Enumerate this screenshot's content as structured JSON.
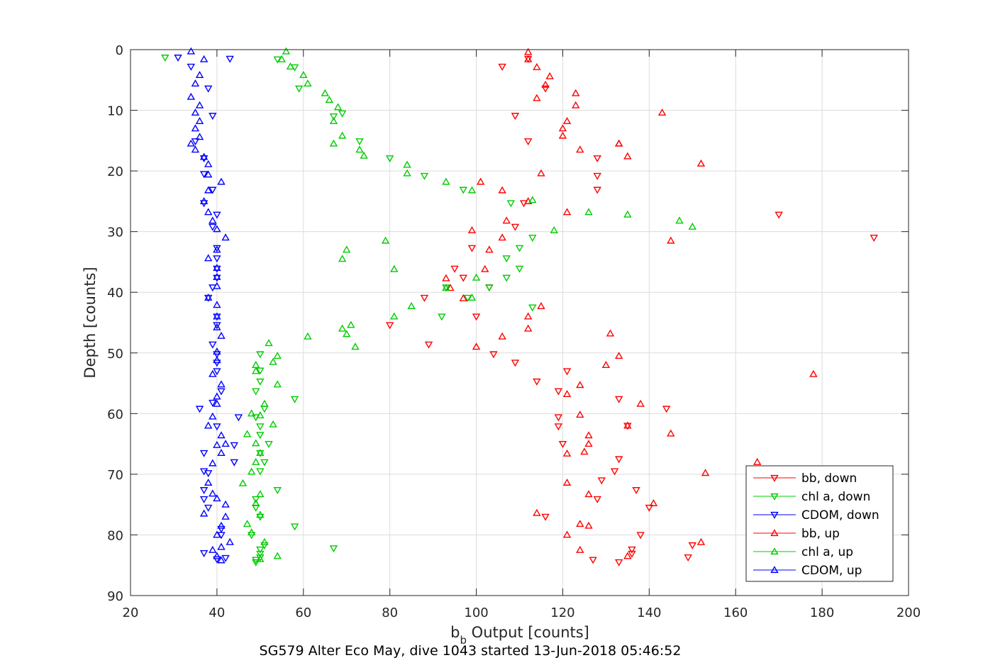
{
  "caption": "SG579 Alter Eco May, dive 1043 started 13-Jun-2018 05:46:52",
  "chart_data": {
    "type": "scatter",
    "xlabel_main": "b",
    "xlabel_sub": "b",
    "xlabel_rest": " Output [counts]",
    "ylabel": "Depth [counts]",
    "xlim": [
      20,
      200
    ],
    "ylim": [
      0,
      90
    ],
    "y_reversed": true,
    "grid": true,
    "legend_position": "lower-right",
    "x_ticks": [
      "20",
      "40",
      "60",
      "80",
      "100",
      "120",
      "140",
      "160",
      "180",
      "200"
    ],
    "y_ticks": [
      "0",
      "10",
      "20",
      "30",
      "40",
      "50",
      "60",
      "70",
      "80",
      "90"
    ],
    "series": [
      {
        "name": "bb, down",
        "color": "#ff0000",
        "marker": "down",
        "points": [
          [
            112,
            1.5
          ],
          [
            106,
            2.8
          ],
          [
            116,
            6.4
          ],
          [
            109,
            10.9
          ],
          [
            112,
            15.1
          ],
          [
            128,
            17.9
          ],
          [
            128,
            20.8
          ],
          [
            128,
            23.1
          ],
          [
            111,
            25.3
          ],
          [
            109,
            29.2
          ],
          [
            99,
            32.7
          ],
          [
            95,
            36.1
          ],
          [
            97,
            37.6
          ],
          [
            103,
            39.2
          ],
          [
            88,
            40.9
          ],
          [
            100,
            44
          ],
          [
            80,
            45.4
          ],
          [
            89,
            48.6
          ],
          [
            104,
            50.2
          ],
          [
            109,
            51.6
          ],
          [
            114,
            54.7
          ],
          [
            119,
            56.3
          ],
          [
            133,
            57.6
          ],
          [
            144,
            59.2
          ],
          [
            119,
            60.6
          ],
          [
            119,
            62.1
          ],
          [
            120,
            65
          ],
          [
            133,
            67.5
          ],
          [
            132,
            69.5
          ],
          [
            129,
            71
          ],
          [
            137,
            72.6
          ],
          [
            128,
            74.1
          ],
          [
            140,
            75.5
          ],
          [
            116,
            77
          ],
          [
            138,
            80
          ],
          [
            150,
            81.7
          ],
          [
            136,
            82.4
          ],
          [
            136,
            83.1
          ],
          [
            149,
            83.7
          ],
          [
            127,
            84.1
          ],
          [
            133,
            84.5
          ],
          [
            121,
            53
          ],
          [
            135,
            62
          ],
          [
            170,
            27.2
          ],
          [
            192,
            31
          ]
        ]
      },
      {
        "name": "chl a, down",
        "color": "#00cc00",
        "marker": "down",
        "points": [
          [
            28,
            1.3
          ],
          [
            54,
            1.6
          ],
          [
            58,
            2.9
          ],
          [
            59,
            6.4
          ],
          [
            67,
            11
          ],
          [
            69,
            10.5
          ],
          [
            73,
            15.1
          ],
          [
            80,
            17.9
          ],
          [
            88,
            20.8
          ],
          [
            97,
            23.1
          ],
          [
            108,
            25.3
          ],
          [
            113,
            31
          ],
          [
            110,
            32.7
          ],
          [
            107,
            34.4
          ],
          [
            110,
            36.1
          ],
          [
            107,
            37.6
          ],
          [
            103,
            39.2
          ],
          [
            93,
            39.2
          ],
          [
            98,
            40.9
          ],
          [
            92,
            44
          ],
          [
            113,
            42.5
          ],
          [
            50,
            50.2
          ],
          [
            50,
            52.9
          ],
          [
            50,
            54.7
          ],
          [
            49,
            56.3
          ],
          [
            58,
            57.6
          ],
          [
            51,
            59.2
          ],
          [
            49,
            60.6
          ],
          [
            50,
            62.1
          ],
          [
            50,
            63.5
          ],
          [
            52,
            65
          ],
          [
            50,
            66.5
          ],
          [
            51,
            68
          ],
          [
            50,
            69.5
          ],
          [
            54,
            72.6
          ],
          [
            49,
            74.1
          ],
          [
            49,
            75.5
          ],
          [
            50,
            77
          ],
          [
            58,
            78.6
          ],
          [
            48,
            80
          ],
          [
            51,
            81.7
          ],
          [
            50,
            82.4
          ],
          [
            50,
            83.1
          ],
          [
            50,
            83.7
          ],
          [
            49,
            84.1
          ],
          [
            49,
            84.5
          ],
          [
            67,
            82.2
          ]
        ]
      },
      {
        "name": "CDOM, down",
        "color": "#0000ff",
        "marker": "down",
        "points": [
          [
            43,
            1.5
          ],
          [
            31,
            1.3
          ],
          [
            34,
            2.8
          ],
          [
            38,
            6.4
          ],
          [
            39,
            10.9
          ],
          [
            35,
            15.1
          ],
          [
            37,
            17.9
          ],
          [
            37,
            20.5
          ],
          [
            39,
            23.1
          ],
          [
            37,
            25.3
          ],
          [
            40,
            27.2
          ],
          [
            39,
            29.2
          ],
          [
            40,
            32.7
          ],
          [
            40,
            34.4
          ],
          [
            40,
            36.1
          ],
          [
            40,
            37.6
          ],
          [
            39,
            39.2
          ],
          [
            38,
            40.9
          ],
          [
            40,
            44
          ],
          [
            40,
            45.4
          ],
          [
            39,
            48.6
          ],
          [
            40,
            50.2
          ],
          [
            40,
            51.6
          ],
          [
            40,
            53
          ],
          [
            41,
            56.3
          ],
          [
            36,
            59.2
          ],
          [
            40,
            62.1
          ],
          [
            37,
            66.5
          ],
          [
            37,
            69.5
          ],
          [
            37,
            72.6
          ],
          [
            37,
            74.1
          ],
          [
            38,
            75.5
          ],
          [
            41,
            79
          ],
          [
            41,
            80
          ],
          [
            37,
            83
          ],
          [
            40,
            84
          ],
          [
            42,
            83.8
          ],
          [
            45,
            60.6
          ],
          [
            39,
            58.2
          ],
          [
            38,
            69.8
          ],
          [
            44,
            65.2
          ],
          [
            44,
            68
          ]
        ]
      },
      {
        "name": "bb, up",
        "color": "#ff0000",
        "marker": "up",
        "points": [
          [
            112,
            0.4
          ],
          [
            112,
            1.6
          ],
          [
            114,
            2.9
          ],
          [
            117,
            4.4
          ],
          [
            116,
            5.8
          ],
          [
            114,
            8
          ],
          [
            123,
            7.2
          ],
          [
            123,
            9.2
          ],
          [
            143,
            10.4
          ],
          [
            121,
            11.8
          ],
          [
            120,
            13
          ],
          [
            120,
            14.2
          ],
          [
            133,
            15.5
          ],
          [
            124,
            16.5
          ],
          [
            135,
            17.6
          ],
          [
            115,
            20.4
          ],
          [
            152,
            18.8
          ],
          [
            101,
            21.8
          ],
          [
            106,
            23.2
          ],
          [
            112,
            25
          ],
          [
            121,
            26.8
          ],
          [
            107,
            28.2
          ],
          [
            99,
            29.8
          ],
          [
            103,
            33
          ],
          [
            102,
            36.2
          ],
          [
            93,
            37.7
          ],
          [
            94,
            39.3
          ],
          [
            97,
            41
          ],
          [
            115,
            42.3
          ],
          [
            112,
            44
          ],
          [
            112,
            46
          ],
          [
            131,
            46.8
          ],
          [
            106,
            47.3
          ],
          [
            100,
            49
          ],
          [
            133,
            50.5
          ],
          [
            130,
            52
          ],
          [
            178,
            53.5
          ],
          [
            124,
            55.3
          ],
          [
            121,
            56.8
          ],
          [
            138,
            58.4
          ],
          [
            124,
            60.2
          ],
          [
            135,
            62
          ],
          [
            145,
            63.3
          ],
          [
            126,
            63.6
          ],
          [
            126,
            65
          ],
          [
            125,
            66.3
          ],
          [
            121,
            66.6
          ],
          [
            165,
            68
          ],
          [
            153,
            69.8
          ],
          [
            121,
            71.4
          ],
          [
            126,
            73.3
          ],
          [
            141,
            74.8
          ],
          [
            114,
            76.4
          ],
          [
            124,
            78.2
          ],
          [
            126,
            78.5
          ],
          [
            121,
            80
          ],
          [
            152,
            81.2
          ],
          [
            124,
            82.5
          ],
          [
            135,
            83.5
          ],
          [
            145,
            31.5
          ],
          [
            133,
            15.5
          ],
          [
            106,
            31
          ]
        ]
      },
      {
        "name": "chl a, up",
        "color": "#00cc00",
        "marker": "up",
        "points": [
          [
            56,
            0.3
          ],
          [
            55,
            1.6
          ],
          [
            57,
            2.8
          ],
          [
            60,
            4.2
          ],
          [
            61,
            5.6
          ],
          [
            65,
            7.2
          ],
          [
            66,
            8.3
          ],
          [
            68,
            9.5
          ],
          [
            67,
            11.8
          ],
          [
            69,
            14.2
          ],
          [
            67,
            15.5
          ],
          [
            73,
            16.5
          ],
          [
            74,
            17.5
          ],
          [
            84,
            19
          ],
          [
            84,
            20.4
          ],
          [
            93,
            21.8
          ],
          [
            99,
            23.2
          ],
          [
            113,
            24.8
          ],
          [
            126,
            26.8
          ],
          [
            147,
            28.2
          ],
          [
            150,
            29.2
          ],
          [
            135,
            27.2
          ],
          [
            118,
            29.8
          ],
          [
            79,
            31.5
          ],
          [
            70,
            33
          ],
          [
            69,
            34.5
          ],
          [
            81,
            36.2
          ],
          [
            100,
            37.6
          ],
          [
            93,
            39.3
          ],
          [
            99,
            40.9
          ],
          [
            85,
            42.3
          ],
          [
            81,
            44
          ],
          [
            71,
            45.4
          ],
          [
            69,
            46
          ],
          [
            70,
            46.9
          ],
          [
            61,
            47.3
          ],
          [
            72,
            49
          ],
          [
            52,
            48.4
          ],
          [
            54,
            50.5
          ],
          [
            53,
            51.5
          ],
          [
            49,
            52
          ],
          [
            49,
            53
          ],
          [
            54,
            55.2
          ],
          [
            51,
            58.4
          ],
          [
            50,
            60.3
          ],
          [
            48,
            60
          ],
          [
            53,
            61.8
          ],
          [
            47,
            63.4
          ],
          [
            49,
            64.9
          ],
          [
            50,
            66.5
          ],
          [
            49,
            68
          ],
          [
            48,
            69.6
          ],
          [
            46,
            71.5
          ],
          [
            50,
            73.3
          ],
          [
            49,
            74.8
          ],
          [
            50,
            76.7
          ],
          [
            47,
            78.2
          ],
          [
            48,
            79.6
          ],
          [
            51,
            81.2
          ],
          [
            54,
            83.5
          ],
          [
            50,
            84
          ]
        ]
      },
      {
        "name": "CDOM, up",
        "color": "#0000ff",
        "marker": "up",
        "points": [
          [
            34,
            0.3
          ],
          [
            37,
            1.6
          ],
          [
            36,
            4.2
          ],
          [
            35,
            5.6
          ],
          [
            34,
            7.8
          ],
          [
            36,
            9.2
          ],
          [
            35,
            10.4
          ],
          [
            36,
            11.8
          ],
          [
            35,
            13
          ],
          [
            36,
            14.4
          ],
          [
            34,
            15.5
          ],
          [
            35,
            16.5
          ],
          [
            37,
            17.7
          ],
          [
            38,
            18.9
          ],
          [
            38,
            20.6
          ],
          [
            41,
            21.8
          ],
          [
            38,
            23.2
          ],
          [
            37,
            25
          ],
          [
            38,
            26.8
          ],
          [
            39,
            28.2
          ],
          [
            40,
            29.6
          ],
          [
            42,
            31
          ],
          [
            40,
            33
          ],
          [
            38,
            34.4
          ],
          [
            40,
            36
          ],
          [
            40,
            37.5
          ],
          [
            40,
            39
          ],
          [
            38,
            40.9
          ],
          [
            40,
            42.1
          ],
          [
            40,
            44
          ],
          [
            40,
            45.8
          ],
          [
            41,
            47.2
          ],
          [
            40,
            49.8
          ],
          [
            40,
            51.2
          ],
          [
            39,
            53.5
          ],
          [
            41,
            55.2
          ],
          [
            40,
            57.2
          ],
          [
            40,
            58.4
          ],
          [
            39,
            60.5
          ],
          [
            38,
            62
          ],
          [
            41,
            63.6
          ],
          [
            42,
            65
          ],
          [
            40,
            65.2
          ],
          [
            41,
            66.5
          ],
          [
            39,
            68.2
          ],
          [
            38,
            71.4
          ],
          [
            39,
            73.2
          ],
          [
            40,
            74
          ],
          [
            42,
            75
          ],
          [
            42,
            77
          ],
          [
            41,
            78.5
          ],
          [
            40,
            80
          ],
          [
            43,
            81.2
          ],
          [
            41,
            82
          ],
          [
            40,
            83.5
          ],
          [
            41,
            84.2
          ],
          [
            39,
            82.5
          ],
          [
            37,
            76.5
          ]
        ]
      }
    ]
  }
}
